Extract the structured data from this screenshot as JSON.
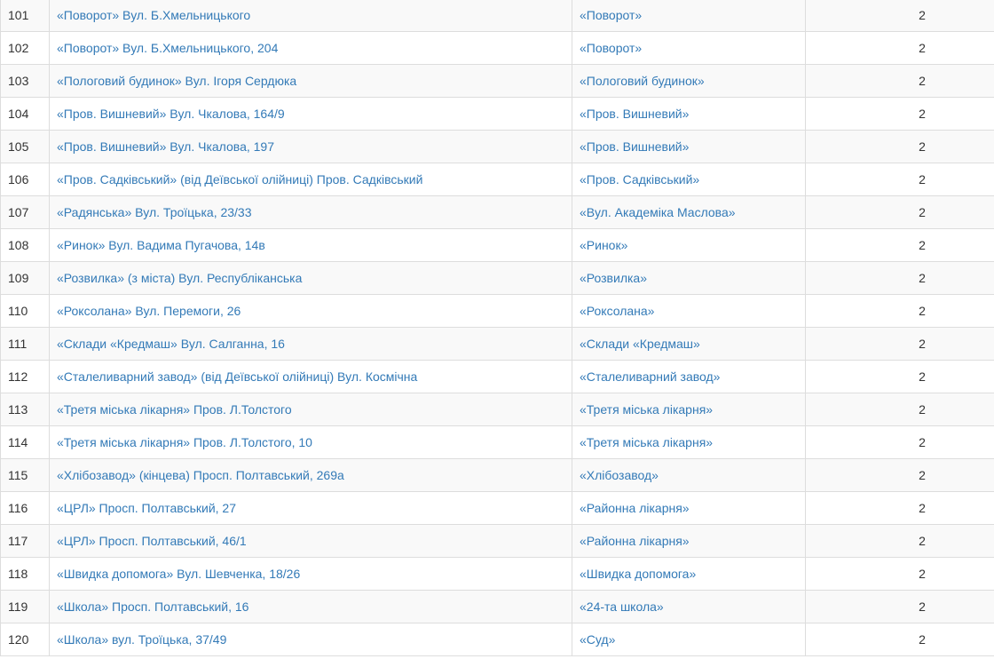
{
  "colors": {
    "link": "#337ab7",
    "text": "#333333",
    "row_stripe": "#f9f9f9",
    "border": "#dddddd",
    "background": "#ffffff"
  },
  "table": {
    "rows": [
      {
        "num": "101",
        "stop": "«Поворот» Вул. Б.Хмельницького",
        "alias": "«Поворот»",
        "count": "2"
      },
      {
        "num": "102",
        "stop": "«Поворот» Вул. Б.Хмельницького, 204",
        "alias": "«Поворот»",
        "count": "2"
      },
      {
        "num": "103",
        "stop": "«Пологовий будинок» Вул. Ігоря Сердюка",
        "alias": "«Пологовий будинок»",
        "count": "2"
      },
      {
        "num": "104",
        "stop": "«Пров. Вишневий» Вул. Чкалова, 164/9",
        "alias": "«Пров. Вишневий»",
        "count": "2"
      },
      {
        "num": "105",
        "stop": "«Пров. Вишневий» Вул. Чкалова, 197",
        "alias": "«Пров. Вишневий»",
        "count": "2"
      },
      {
        "num": "106",
        "stop": "«Пров. Садківський» (від Деївської олійниці) Пров. Садківський",
        "alias": "«Пров. Садківський»",
        "count": "2"
      },
      {
        "num": "107",
        "stop": "«Радянська» Вул. Троїцька, 23/33",
        "alias": "«Вул. Академіка Маслова»",
        "count": "2"
      },
      {
        "num": "108",
        "stop": "«Ринок» Вул. Вадима Пугачова, 14в",
        "alias": "«Ринок»",
        "count": "2"
      },
      {
        "num": "109",
        "stop": "«Розвилка» (з міста) Вул. Республіканська",
        "alias": "«Розвилка»",
        "count": "2"
      },
      {
        "num": "110",
        "stop": "«Роксолана» Вул. Перемоги, 26",
        "alias": "«Роксолана»",
        "count": "2"
      },
      {
        "num": "111",
        "stop": "«Склади «Кредмаш» Вул. Салганна, 16",
        "alias": "«Склади «Кредмаш»",
        "count": "2"
      },
      {
        "num": "112",
        "stop": "«Сталеливарний завод» (від Деївської олійниці) Вул. Космічна",
        "alias": "«Сталеливарний завод»",
        "count": "2"
      },
      {
        "num": "113",
        "stop": "«Третя міська лікарня» Пров. Л.Толстого",
        "alias": "«Третя міська лікарня»",
        "count": "2"
      },
      {
        "num": "114",
        "stop": "«Третя міська лікарня» Пров. Л.Толстого, 10",
        "alias": "«Третя міська лікарня»",
        "count": "2"
      },
      {
        "num": "115",
        "stop": "«Хлібозавод» (кінцева) Просп. Полтавський, 269а",
        "alias": "«Хлібозавод»",
        "count": "2"
      },
      {
        "num": "116",
        "stop": "«ЦРЛ» Просп. Полтавський, 27",
        "alias": "«Районна лікарня»",
        "count": "2"
      },
      {
        "num": "117",
        "stop": "«ЦРЛ» Просп. Полтавський, 46/1",
        "alias": "«Районна лікарня»",
        "count": "2"
      },
      {
        "num": "118",
        "stop": "«Швидка допомога» Вул. Шевченка, 18/26",
        "alias": "«Швидка допомога»",
        "count": "2"
      },
      {
        "num": "119",
        "stop": "«Школа» Просп. Полтавський, 16",
        "alias": "«24-та школа»",
        "count": "2"
      },
      {
        "num": "120",
        "stop": "«Школа» вул. Троїцька, 37/49",
        "alias": "«Суд»",
        "count": "2"
      }
    ]
  }
}
